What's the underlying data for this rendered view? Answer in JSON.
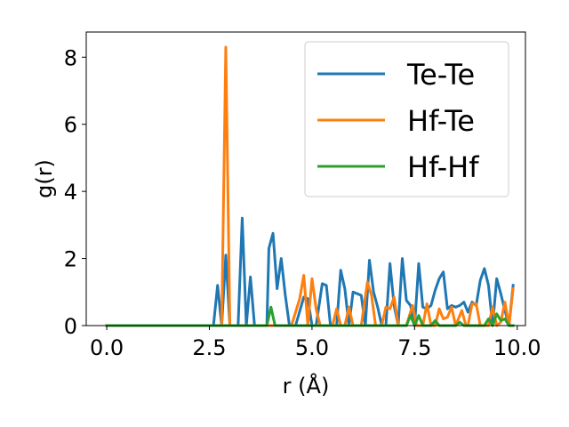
{
  "chart_data": {
    "type": "line",
    "xlabel": "r (Å)",
    "ylabel": "g(r)",
    "xlim": [
      -0.5,
      10.2
    ],
    "ylim": [
      0,
      8.75
    ],
    "xticks": [
      0.0,
      2.5,
      5.0,
      7.5,
      10.0
    ],
    "xtick_labels": [
      "0.0",
      "2.5",
      "5.0",
      "7.5",
      "10.0"
    ],
    "yticks": [
      0,
      2,
      4,
      6,
      8
    ],
    "ytick_labels": [
      "0",
      "2",
      "4",
      "6",
      "8"
    ],
    "grid": false,
    "legend_position": "top-right",
    "series": [
      {
        "name": "Te-Te",
        "color": "#1f77b4",
        "points": [
          [
            0.0,
            0
          ],
          [
            2.6,
            0
          ],
          [
            2.7,
            1.2
          ],
          [
            2.8,
            0
          ],
          [
            2.9,
            2.1
          ],
          [
            3.0,
            0
          ],
          [
            3.2,
            0
          ],
          [
            3.3,
            3.2
          ],
          [
            3.4,
            0
          ],
          [
            3.5,
            1.45
          ],
          [
            3.6,
            0
          ],
          [
            3.9,
            0
          ],
          [
            3.95,
            2.3
          ],
          [
            4.05,
            2.75
          ],
          [
            4.15,
            1.1
          ],
          [
            4.25,
            2.0
          ],
          [
            4.35,
            0.9
          ],
          [
            4.45,
            0
          ],
          [
            4.6,
            0
          ],
          [
            4.8,
            0.85
          ],
          [
            4.9,
            0.8
          ],
          [
            5.0,
            0
          ],
          [
            5.1,
            0
          ],
          [
            5.25,
            1.25
          ],
          [
            5.35,
            1.2
          ],
          [
            5.45,
            0
          ],
          [
            5.6,
            0
          ],
          [
            5.7,
            1.65
          ],
          [
            5.8,
            1.1
          ],
          [
            5.9,
            0
          ],
          [
            6.0,
            1.0
          ],
          [
            6.1,
            0.95
          ],
          [
            6.2,
            0.9
          ],
          [
            6.3,
            0
          ],
          [
            6.4,
            1.95
          ],
          [
            6.5,
            1.0
          ],
          [
            6.6,
            0.55
          ],
          [
            6.7,
            0
          ],
          [
            6.8,
            0
          ],
          [
            6.9,
            1.85
          ],
          [
            7.0,
            0.6
          ],
          [
            7.1,
            0
          ],
          [
            7.2,
            2.0
          ],
          [
            7.3,
            0.75
          ],
          [
            7.4,
            0.6
          ],
          [
            7.5,
            0
          ],
          [
            7.6,
            1.85
          ],
          [
            7.7,
            0.55
          ],
          [
            7.8,
            0.5
          ],
          [
            7.9,
            0.6
          ],
          [
            8.0,
            1.05
          ],
          [
            8.1,
            1.4
          ],
          [
            8.2,
            1.6
          ],
          [
            8.3,
            0.5
          ],
          [
            8.4,
            0.6
          ],
          [
            8.5,
            0.55
          ],
          [
            8.6,
            0.6
          ],
          [
            8.7,
            0.7
          ],
          [
            8.8,
            0.4
          ],
          [
            8.9,
            0.7
          ],
          [
            9.0,
            0.6
          ],
          [
            9.1,
            1.35
          ],
          [
            9.2,
            1.7
          ],
          [
            9.3,
            1.2
          ],
          [
            9.4,
            0
          ],
          [
            9.5,
            1.4
          ],
          [
            9.6,
            0.95
          ],
          [
            9.7,
            0.45
          ],
          [
            9.8,
            0
          ],
          [
            9.9,
            1.2
          ]
        ]
      },
      {
        "name": "Hf-Te",
        "color": "#ff7f0e",
        "points": [
          [
            0.0,
            0
          ],
          [
            2.8,
            0
          ],
          [
            2.9,
            8.3
          ],
          [
            3.0,
            0
          ],
          [
            4.5,
            0
          ],
          [
            4.7,
            0.8
          ],
          [
            4.8,
            1.5
          ],
          [
            4.9,
            0
          ],
          [
            5.0,
            1.4
          ],
          [
            5.1,
            0.5
          ],
          [
            5.2,
            0
          ],
          [
            5.5,
            0
          ],
          [
            5.6,
            0.5
          ],
          [
            5.7,
            0
          ],
          [
            5.8,
            0
          ],
          [
            5.9,
            0.55
          ],
          [
            6.0,
            0
          ],
          [
            6.2,
            0
          ],
          [
            6.35,
            1.3
          ],
          [
            6.45,
            0.9
          ],
          [
            6.55,
            0
          ],
          [
            6.7,
            0
          ],
          [
            6.8,
            0.55
          ],
          [
            6.9,
            0.5
          ],
          [
            7.0,
            0.85
          ],
          [
            7.1,
            0
          ],
          [
            7.3,
            0
          ],
          [
            7.45,
            0.6
          ],
          [
            7.55,
            0
          ],
          [
            7.7,
            0
          ],
          [
            7.8,
            0.65
          ],
          [
            7.9,
            0
          ],
          [
            8.0,
            0
          ],
          [
            8.1,
            0.5
          ],
          [
            8.2,
            0.2
          ],
          [
            8.3,
            0.25
          ],
          [
            8.4,
            0.55
          ],
          [
            8.5,
            0
          ],
          [
            8.65,
            0.45
          ],
          [
            8.75,
            0
          ],
          [
            8.8,
            0
          ],
          [
            8.9,
            0.65
          ],
          [
            9.0,
            0.65
          ],
          [
            9.1,
            0
          ],
          [
            9.3,
            0
          ],
          [
            9.4,
            0.55
          ],
          [
            9.5,
            0
          ],
          [
            9.6,
            0.1
          ],
          [
            9.7,
            0.7
          ],
          [
            9.8,
            0
          ],
          [
            9.9,
            1.1
          ]
        ]
      },
      {
        "name": "Hf-Hf",
        "color": "#2ca02c",
        "points": [
          [
            0.0,
            0
          ],
          [
            3.9,
            0
          ],
          [
            4.0,
            0.55
          ],
          [
            4.1,
            0
          ],
          [
            7.3,
            0
          ],
          [
            7.4,
            0.3
          ],
          [
            7.5,
            0
          ],
          [
            7.6,
            0.3
          ],
          [
            7.7,
            0
          ],
          [
            7.9,
            0
          ],
          [
            8.0,
            0.15
          ],
          [
            8.1,
            0
          ],
          [
            8.5,
            0
          ],
          [
            8.6,
            0.1
          ],
          [
            8.7,
            0
          ],
          [
            9.2,
            0
          ],
          [
            9.3,
            0.2
          ],
          [
            9.4,
            0
          ],
          [
            9.5,
            0.35
          ],
          [
            9.6,
            0.15
          ],
          [
            9.7,
            0.2
          ],
          [
            9.8,
            0
          ],
          [
            9.9,
            0
          ]
        ]
      }
    ]
  }
}
